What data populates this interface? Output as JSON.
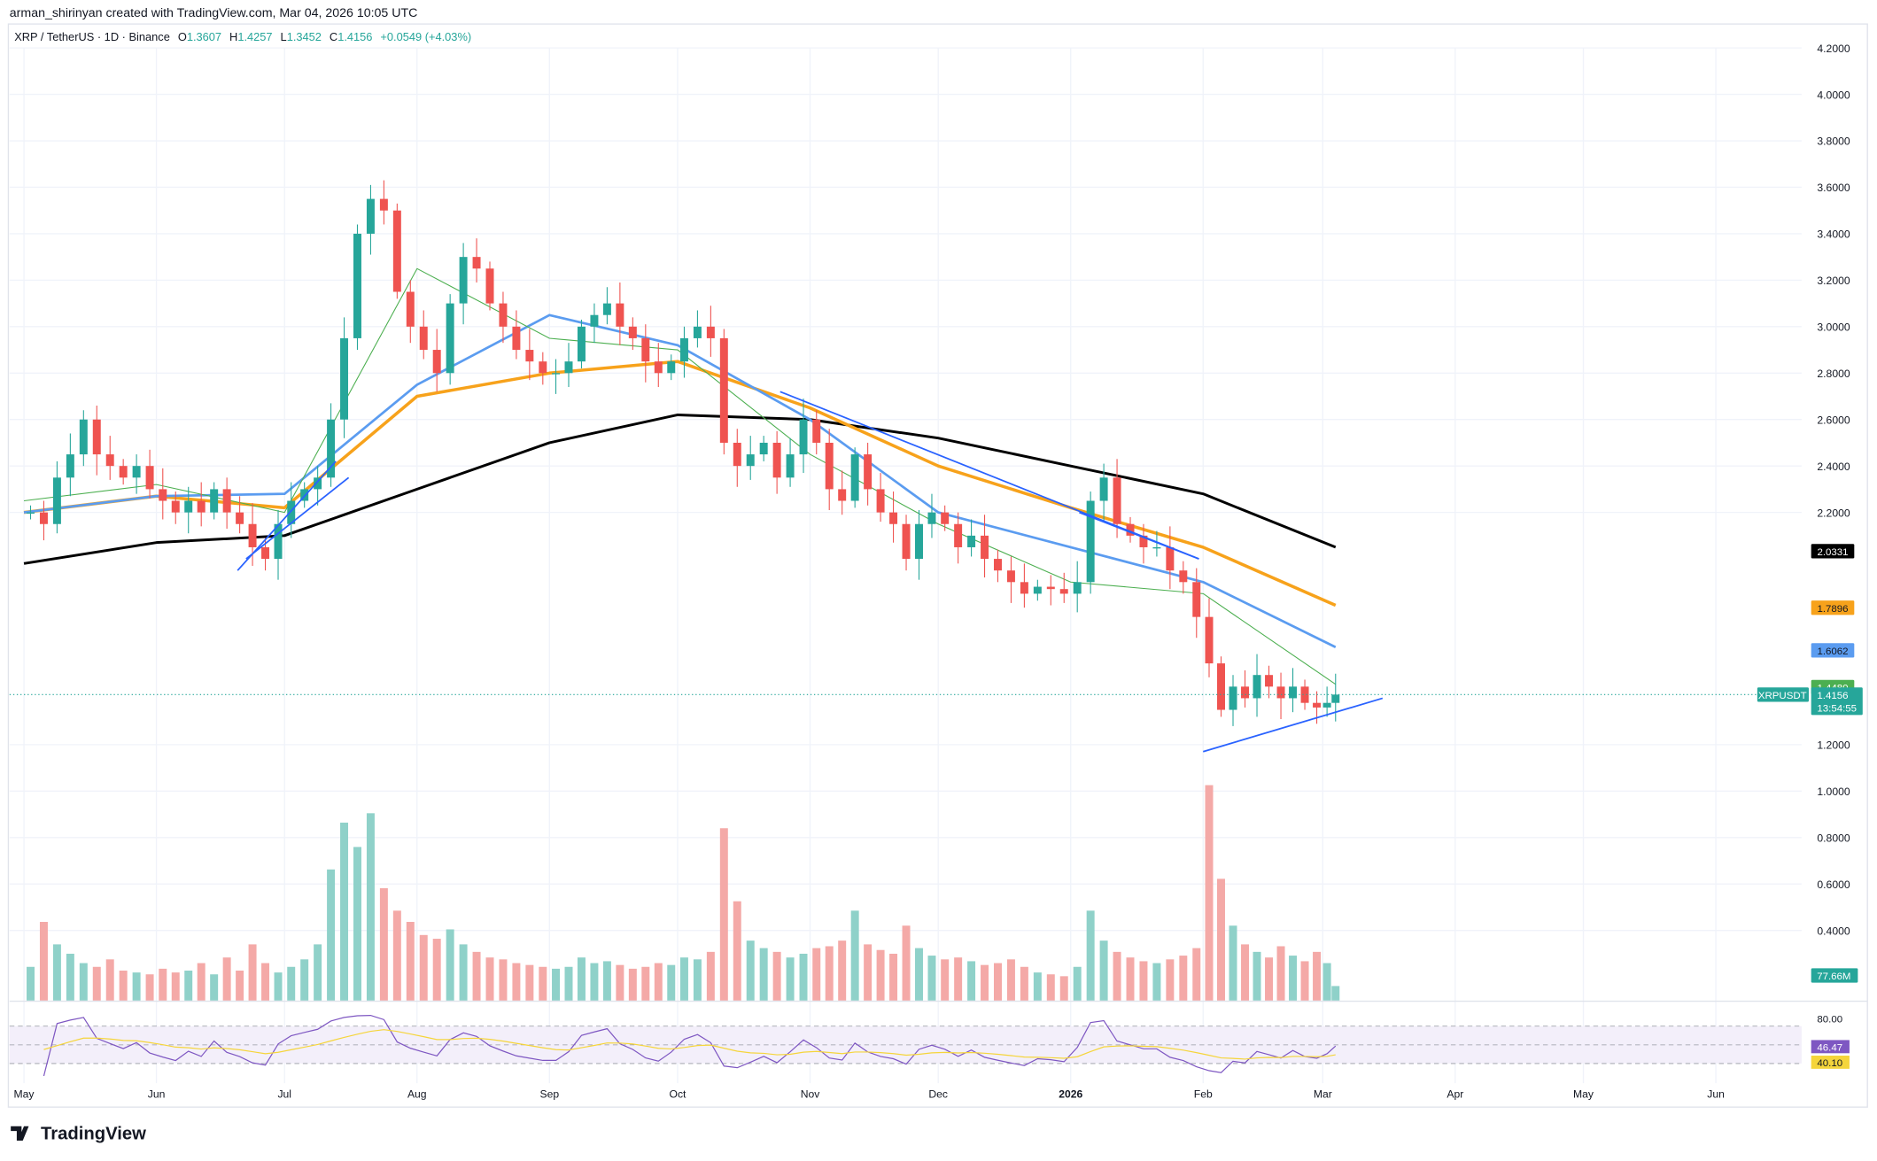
{
  "header": {
    "credit": "arman_shirinyan created with TradingView.com, Mar 04, 2026 10:05 UTC",
    "symbol": "XRP / TetherUS · 1D · Binance",
    "o_label": "O",
    "o": "1.3607",
    "h_label": "H",
    "h": "1.4257",
    "l_label": "L",
    "l": "1.3452",
    "c_label": "C",
    "c": "1.4156",
    "change": "+0.0549 (+4.03%)"
  },
  "footer": {
    "logo": "TradingView"
  },
  "colors": {
    "up": "#26a69a",
    "down": "#ef5350",
    "ma200": "#000000",
    "ma100": "#f7a21b",
    "ma50": "#5b9cf0",
    "ma20": "#4caf50",
    "trendline": "#2962ff",
    "rsi": "#7e57c2",
    "rsi_ma": "#f5d53b"
  },
  "chart_data": {
    "type": "candlestick",
    "title": "XRP / TetherUS · 1D · Binance",
    "y_ticks": [
      "4.2000",
      "4.0000",
      "3.8000",
      "3.6000",
      "3.4000",
      "3.2000",
      "3.0000",
      "2.8000",
      "2.6000",
      "2.4000",
      "2.2000",
      "1.2000",
      "1.0000",
      "0.8000",
      "0.6000",
      "0.4000"
    ],
    "ylim": [
      0.2,
      4.2
    ],
    "x_ticks": [
      {
        "label": "May",
        "date": "2025-05-01"
      },
      {
        "label": "Jun",
        "date": "2025-06-01"
      },
      {
        "label": "Jul",
        "date": "2025-07-01"
      },
      {
        "label": "Aug",
        "date": "2025-08-01"
      },
      {
        "label": "Sep",
        "date": "2025-09-01"
      },
      {
        "label": "Oct",
        "date": "2025-10-01"
      },
      {
        "label": "Nov",
        "date": "2025-11-01"
      },
      {
        "label": "Dec",
        "date": "2025-12-01"
      },
      {
        "label": "2026",
        "date": "2026-01-01"
      },
      {
        "label": "Feb",
        "date": "2026-02-01"
      },
      {
        "label": "Mar",
        "date": "2026-03-01"
      },
      {
        "label": "Apr",
        "date": "2026-04-01"
      },
      {
        "label": "May",
        "date": "2026-05-01"
      },
      {
        "label": "Jun",
        "date": "2026-06-01"
      }
    ],
    "last_date": "2026-03-04",
    "closes_by_month": {
      "2025-05": [
        2.2,
        2.15,
        2.35,
        2.45,
        2.6,
        2.45,
        2.4,
        2.35,
        2.4,
        2.3
      ],
      "2025-06": [
        2.25,
        2.2,
        2.25,
        2.2,
        2.3,
        2.2,
        2.15,
        2.05,
        2.0,
        2.15
      ],
      "2025-07": [
        2.25,
        2.3,
        2.35,
        2.6,
        2.95,
        3.4,
        3.55,
        3.5,
        3.15,
        3.0
      ],
      "2025-08": [
        2.9,
        2.8,
        3.1,
        3.3,
        3.25,
        3.1,
        3.0,
        2.9,
        2.85,
        2.8
      ],
      "2025-09": [
        2.8,
        2.85,
        3.0,
        3.05,
        3.1,
        3.0,
        2.95,
        2.85,
        2.8,
        2.85
      ],
      "2025-10": [
        2.95,
        3.0,
        2.95,
        2.5,
        2.4,
        2.45,
        2.5,
        2.35,
        2.45,
        2.6
      ],
      "2025-11": [
        2.5,
        2.3,
        2.25,
        2.45,
        2.3,
        2.2,
        2.15,
        2.0,
        2.15,
        2.2
      ],
      "2025-12": [
        2.15,
        2.05,
        2.1,
        2.0,
        1.95,
        1.9,
        1.85,
        1.88,
        1.87,
        1.85
      ],
      "2026-01": [
        1.9,
        2.25,
        2.35,
        2.15,
        2.1,
        2.05,
        2.05,
        1.95,
        1.9,
        1.75
      ],
      "2026-02": [
        1.55,
        1.35,
        1.45,
        1.4,
        1.5,
        1.45,
        1.4,
        1.45,
        1.38,
        1.36
      ],
      "2026-03": [
        1.38,
        1.4156
      ]
    },
    "volume_by_month": {
      "2025-05": [
        180,
        420,
        300,
        250,
        200,
        180,
        220,
        160,
        150,
        140
      ],
      "2025-06": [
        170,
        150,
        160,
        200,
        140,
        230,
        160,
        300,
        200,
        150
      ],
      "2025-07": [
        180,
        220,
        300,
        700,
        950,
        820,
        1000,
        600,
        480,
        420
      ],
      "2025-08": [
        350,
        330,
        380,
        300,
        260,
        230,
        220,
        200,
        190,
        180
      ],
      "2025-09": [
        170,
        180,
        230,
        200,
        210,
        190,
        170,
        180,
        200,
        190
      ],
      "2025-10": [
        230,
        220,
        260,
        920,
        530,
        320,
        280,
        260,
        230,
        250
      ],
      "2025-11": [
        280,
        290,
        320,
        480,
        300,
        270,
        250,
        400,
        280,
        240
      ],
      "2025-12": [
        220,
        230,
        210,
        190,
        200,
        220,
        180,
        150,
        140,
        130
      ],
      "2026-01": [
        180,
        480,
        320,
        260,
        230,
        210,
        200,
        220,
        240,
        280
      ],
      "2026-02": [
        1150,
        650,
        400,
        300,
        260,
        230,
        290,
        240,
        210,
        260
      ],
      "2026-03": [
        200,
        77.66
      ]
    },
    "series": [
      {
        "name": "MA200",
        "color_key": "ma200",
        "last": "2.0331",
        "by_month": {
          "2025-05": 1.98,
          "2025-06": 2.07,
          "2025-07": 2.1,
          "2025-08": 2.3,
          "2025-09": 2.5,
          "2025-10": 2.62,
          "2025-11": 2.6,
          "2025-12": 2.52,
          "2026-01": 2.4,
          "2026-02": 2.28,
          "2026-03": 2.05
        }
      },
      {
        "name": "MA100",
        "color_key": "ma100",
        "last": "1.7896",
        "by_month": {
          "2025-05": 2.2,
          "2025-06": 2.27,
          "2025-07": 2.22,
          "2025-08": 2.7,
          "2025-09": 2.8,
          "2025-10": 2.85,
          "2025-11": 2.65,
          "2025-12": 2.4,
          "2026-01": 2.22,
          "2026-02": 2.05,
          "2026-03": 1.8
        }
      },
      {
        "name": "MA50",
        "color_key": "ma50",
        "last": "1.6062",
        "by_month": {
          "2025-05": 2.2,
          "2025-06": 2.27,
          "2025-07": 2.28,
          "2025-08": 2.75,
          "2025-09": 3.05,
          "2025-10": 2.92,
          "2025-11": 2.6,
          "2025-12": 2.2,
          "2026-01": 2.05,
          "2026-02": 1.9,
          "2026-03": 1.62
        }
      },
      {
        "name": "MA20",
        "color_key": "ma20",
        "last": "1.4480",
        "by_month": {
          "2025-05": 2.25,
          "2025-06": 2.32,
          "2025-07": 2.2,
          "2025-08": 3.25,
          "2025-09": 2.95,
          "2025-10": 2.9,
          "2025-11": 2.45,
          "2025-12": 2.15,
          "2026-01": 1.9,
          "2026-02": 1.85,
          "2026-03": 1.46
        }
      }
    ],
    "trendlines": [
      {
        "from": [
          "2025-06-20",
          1.95
        ],
        "to": [
          "2025-07-13",
          2.42
        ]
      },
      {
        "from": [
          "2025-06-22",
          2.0
        ],
        "to": [
          "2025-07-16",
          2.35
        ]
      },
      {
        "from": [
          "2025-10-25",
          2.72
        ],
        "to": [
          "2026-01-31",
          2.0
        ]
      },
      {
        "from": [
          "2026-01-03",
          2.2
        ],
        "to": [
          "2026-01-31",
          2.0
        ]
      },
      {
        "from": [
          "2026-02-01",
          1.17
        ],
        "to": [
          "2026-03-15",
          1.4
        ]
      }
    ],
    "price_label": {
      "symbol": "XRPUSDT",
      "price": "1.4156",
      "countdown": "13:54:55"
    },
    "volume_label": "77.66M",
    "rsi": {
      "level_top": "80.00",
      "value": "46.47",
      "ma": "40.10"
    }
  }
}
